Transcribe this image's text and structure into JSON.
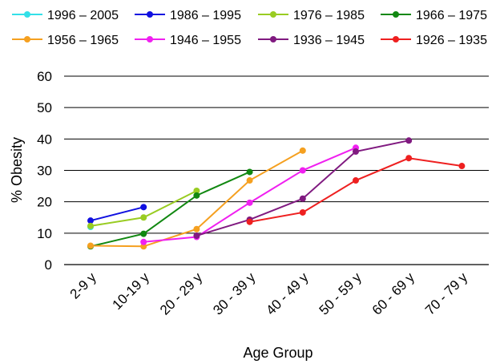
{
  "chart_data": {
    "type": "line",
    "xlabel": "Age Group",
    "ylabel": "% Obesity",
    "ylim": [
      0,
      60
    ],
    "yticks": [
      0,
      10,
      20,
      30,
      40,
      50,
      60
    ],
    "grid": true,
    "legend_position": "top",
    "categories": [
      "2-9 y",
      "10-19 y",
      "20 - 29 y",
      "30 - 39 y",
      "40 - 49 y",
      "50 - 59 y",
      "60 - 69 y",
      "70 - 79 y"
    ],
    "series": [
      {
        "name": "1996 – 2005",
        "color": "#33E0E8",
        "values": [
          12,
          null,
          null,
          null,
          null,
          null,
          null,
          null
        ]
      },
      {
        "name": "1986 – 1995",
        "color": "#1010E0",
        "values": [
          14,
          18.3,
          null,
          null,
          null,
          null,
          null,
          null
        ]
      },
      {
        "name": "1976 – 1985",
        "color": "#99CC22",
        "values": [
          12.3,
          15,
          23.5,
          null,
          null,
          null,
          null,
          null
        ]
      },
      {
        "name": "1966 – 1975",
        "color": "#118811",
        "values": [
          5.8,
          9.8,
          22,
          29.5,
          null,
          null,
          null,
          null
        ]
      },
      {
        "name": "1956 – 1965",
        "color": "#F5A020",
        "values": [
          6,
          5.8,
          11.3,
          26.8,
          36.3,
          null,
          null,
          null
        ]
      },
      {
        "name": "1946 – 1955",
        "color": "#F020F0",
        "values": [
          null,
          7.2,
          8.8,
          19.7,
          30,
          37.2,
          null,
          null
        ]
      },
      {
        "name": "1936 – 1945",
        "color": "#801A80",
        "values": [
          null,
          null,
          9.2,
          14.3,
          21,
          36,
          39.5,
          null
        ]
      },
      {
        "name": "1926 – 1935",
        "color": "#EE2020",
        "values": [
          null,
          null,
          null,
          13.6,
          16.6,
          26.8,
          33.9,
          31.4
        ]
      }
    ]
  }
}
